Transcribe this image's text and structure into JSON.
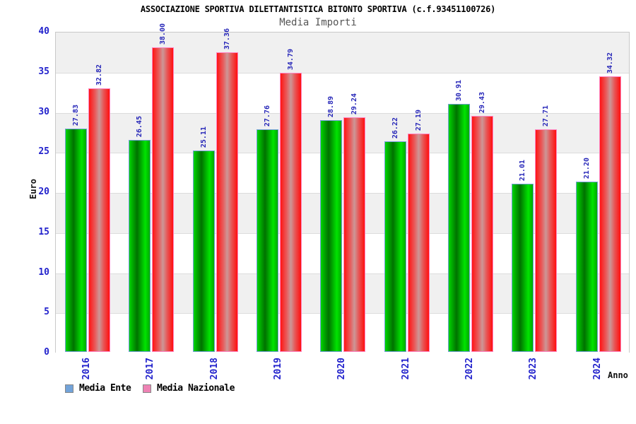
{
  "header": {
    "title": "ASSOCIAZIONE SPORTIVA DILETTANTISTICA BITONTO SPORTIVA (c.f.93451100726)",
    "subtitle": "Media Importi"
  },
  "colors": {
    "axis_text_blue": "#2222cc",
    "value_label_blue": "#2626b8",
    "band_gray": "#f0f0f0",
    "band_white": "#ffffff",
    "green_bar_base": "#00cc00",
    "green_bar_border": "#74a0d8",
    "red_bar_base": "#ff0000",
    "red_bar_border": "#ff85c2",
    "legend_swatch_ente": "#72a3d9",
    "legend_swatch_nazionale": "#ee82b4"
  },
  "legend": [
    {
      "label": "Media Ente",
      "swatch": "#72a3d9"
    },
    {
      "label": "Media Nazionale",
      "swatch": "#ee82b4"
    }
  ],
  "chart_data": {
    "type": "bar",
    "title": "ASSOCIAZIONE SPORTIVA DILETTANTISTICA BITONTO SPORTIVA (c.f.93451100726)",
    "subtitle": "Media Importi",
    "xlabel": "Anno",
    "ylabel": "Euro",
    "ylim": [
      0,
      40
    ],
    "ytick_step": 5,
    "yticks": [
      0,
      5,
      10,
      15,
      20,
      25,
      30,
      35,
      40
    ],
    "grid": "horizontal-bands-alternating",
    "legend_position": "bottom-left",
    "categories": [
      "2016",
      "2017",
      "2018",
      "2019",
      "2020",
      "2021",
      "2022",
      "2023",
      "2024"
    ],
    "series": [
      {
        "name": "Media Ente",
        "values": [
          27.83,
          26.45,
          25.11,
          27.76,
          28.89,
          26.22,
          30.91,
          21.01,
          21.2
        ],
        "labels": [
          "27.83",
          "26.45",
          "25.11",
          "27.76",
          "28.89",
          "26.22",
          "30.91",
          "21.01",
          "21.20"
        ]
      },
      {
        "name": "Media Nazionale",
        "values": [
          32.82,
          38.0,
          37.36,
          34.79,
          29.24,
          27.19,
          29.43,
          27.71,
          34.32
        ],
        "labels": [
          "32.82",
          "38.00",
          "37.36",
          "34.79",
          "29.24",
          "27.19",
          "29.43",
          "27.71",
          "34.32"
        ]
      }
    ]
  }
}
